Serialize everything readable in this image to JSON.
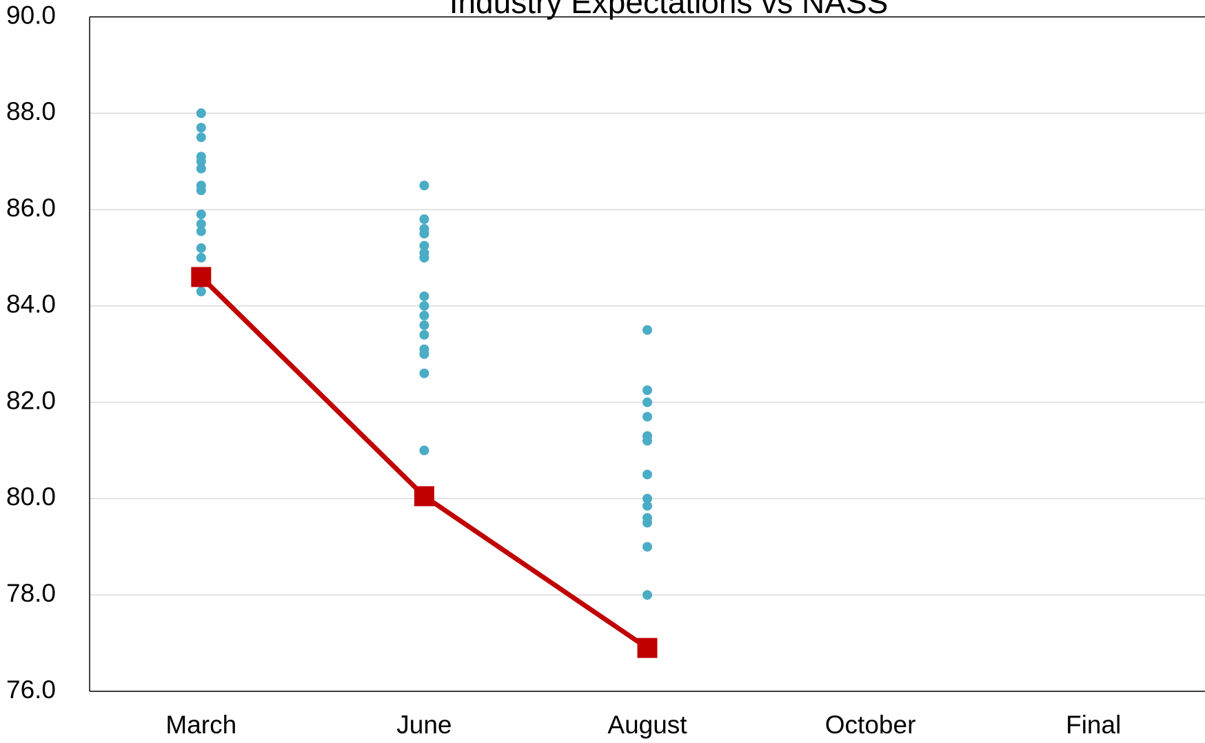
{
  "chart_data": {
    "type": "line",
    "title": "Industry Expectations vs NASS",
    "categories": [
      "March",
      "June",
      "August",
      "October",
      "Final"
    ],
    "ylim": [
      76,
      90
    ],
    "yticks": [
      {
        "value": 76,
        "label": "76.0"
      },
      {
        "value": 78,
        "label": "78.0"
      },
      {
        "value": 80,
        "label": "80.0"
      },
      {
        "value": 82,
        "label": "82.0"
      },
      {
        "value": 84,
        "label": "84.0"
      },
      {
        "value": 86,
        "label": "86.0"
      },
      {
        "value": 88,
        "label": "88.0"
      },
      {
        "value": 90,
        "label": "90.0"
      }
    ],
    "grid": true,
    "series": [
      {
        "type": "scatter",
        "color": "#4bacc6",
        "values": [
          [
            88.0,
            87.7,
            87.5,
            87.1,
            87.0,
            86.85,
            86.5,
            86.4,
            85.9,
            85.7,
            85.55,
            85.2,
            85.0,
            84.3
          ],
          [
            86.5,
            85.8,
            85.6,
            85.5,
            85.25,
            85.1,
            85.0,
            84.2,
            84.0,
            83.8,
            83.6,
            83.4,
            83.1,
            83.0,
            82.6,
            81.0
          ],
          [
            83.5,
            82.25,
            82.0,
            81.7,
            81.3,
            81.2,
            80.5,
            80.0,
            79.85,
            79.6,
            79.5,
            79.0,
            78.0
          ],
          [],
          []
        ]
      },
      {
        "type": "line",
        "color": "#c00000",
        "values": [
          84.6,
          80.05,
          76.9,
          null,
          null
        ]
      }
    ]
  }
}
